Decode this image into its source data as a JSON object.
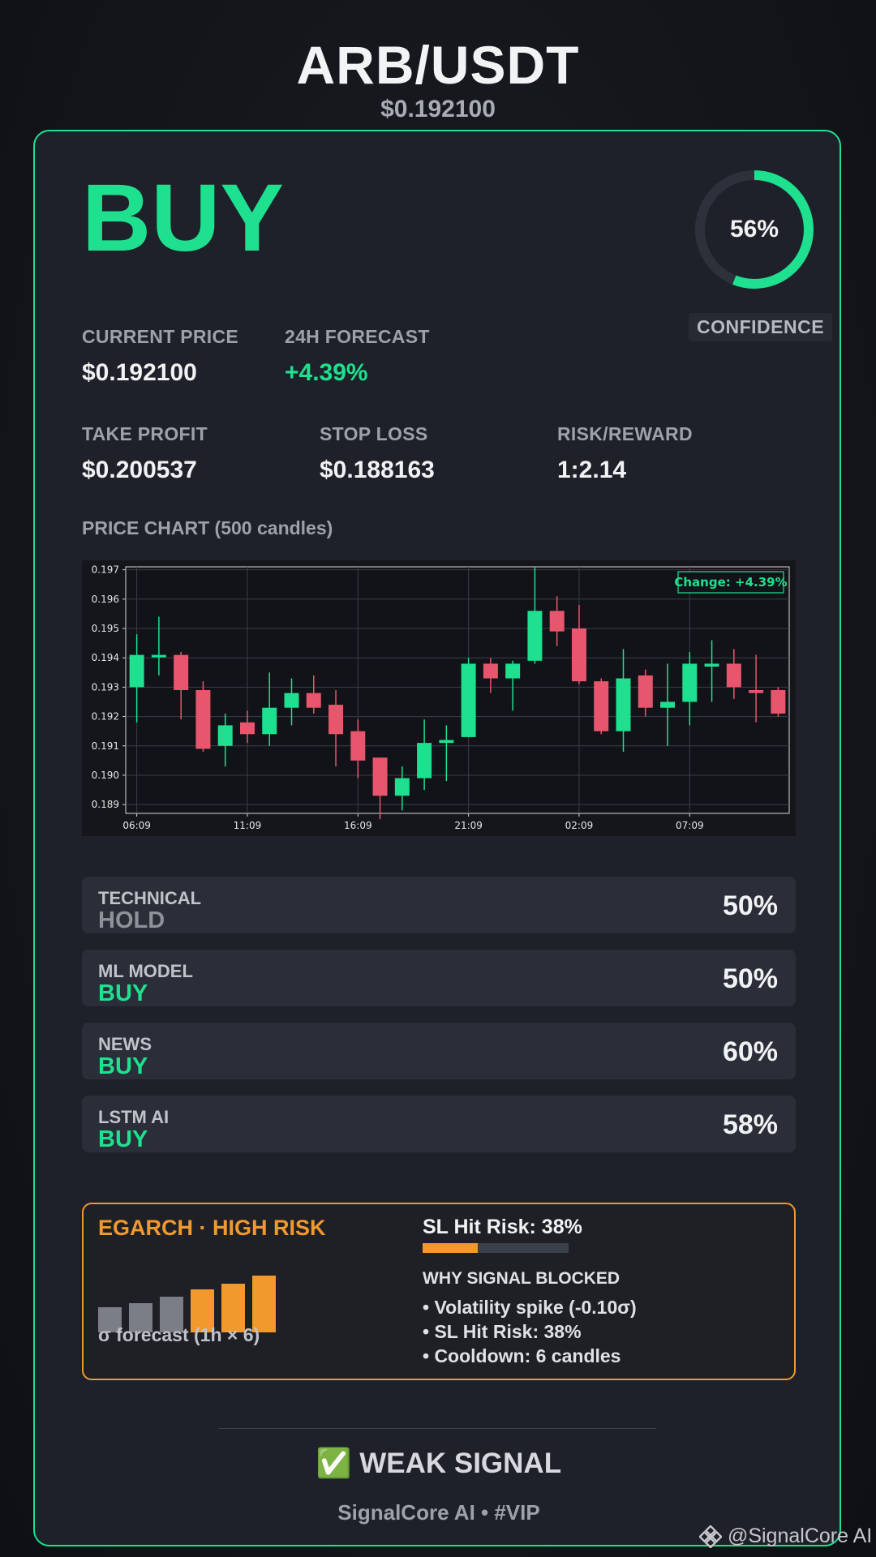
{
  "header": {
    "pair": "ARB/USDT",
    "price": "$0.192100"
  },
  "signal": {
    "label": "BUY",
    "color": "#1ee08f"
  },
  "confidence": {
    "value": 0.56,
    "text": "56%",
    "label": "CONFIDENCE"
  },
  "metrics": {
    "current_price": {
      "label": "CURRENT PRICE",
      "value": "$0.192100"
    },
    "forecast": {
      "label": "24H FORECAST",
      "value": "+4.39%"
    },
    "take_profit": {
      "label": "TAKE PROFIT",
      "value": "$0.200537"
    },
    "stop_loss": {
      "label": "STOP LOSS",
      "value": "$0.188163"
    },
    "risk_reward": {
      "label": "RISK/REWARD",
      "value": "1:2.14"
    }
  },
  "chart_title": "PRICE CHART (500 candles)",
  "chart_data": {
    "type": "candlestick",
    "title": "",
    "xlabel": "",
    "ylabel": "",
    "ylim": [
      0.1887,
      0.1971
    ],
    "yticks": [
      0.197,
      0.196,
      0.195,
      0.194,
      0.193,
      0.192,
      0.191,
      0.19,
      0.189
    ],
    "ytick_labels": [
      "0.197",
      "0.196",
      "0.195",
      "0.194",
      "0.193",
      "0.192",
      "0.191",
      "0.190",
      "0.189"
    ],
    "xtick_labels": [
      "06:09",
      "11:09",
      "16:09",
      "21:09",
      "02:09",
      "07:09"
    ],
    "xtick_candle_index": [
      0,
      5,
      10,
      15,
      20,
      25
    ],
    "annotation": "Change: +4.39%",
    "grid": true,
    "colors": {
      "up": "#1ee08f",
      "down": "#e8566e"
    },
    "candles": [
      {
        "o": 0.193,
        "h": 0.1948,
        "l": 0.1918,
        "c": 0.1941
      },
      {
        "o": 0.1941,
        "h": 0.1954,
        "l": 0.1934,
        "c": 0.1941
      },
      {
        "o": 0.1941,
        "h": 0.1942,
        "l": 0.1919,
        "c": 0.1929
      },
      {
        "o": 0.1929,
        "h": 0.1932,
        "l": 0.1908,
        "c": 0.1909
      },
      {
        "o": 0.191,
        "h": 0.1921,
        "l": 0.1903,
        "c": 0.1917
      },
      {
        "o": 0.1918,
        "h": 0.1922,
        "l": 0.1911,
        "c": 0.1914
      },
      {
        "o": 0.1914,
        "h": 0.1935,
        "l": 0.191,
        "c": 0.1923
      },
      {
        "o": 0.1923,
        "h": 0.1933,
        "l": 0.1917,
        "c": 0.1928
      },
      {
        "o": 0.1928,
        "h": 0.1934,
        "l": 0.1921,
        "c": 0.1923
      },
      {
        "o": 0.1924,
        "h": 0.1929,
        "l": 0.1903,
        "c": 0.1914
      },
      {
        "o": 0.1915,
        "h": 0.1919,
        "l": 0.1899,
        "c": 0.1905
      },
      {
        "o": 0.1906,
        "h": 0.1906,
        "l": 0.1885,
        "c": 0.1893
      },
      {
        "o": 0.1893,
        "h": 0.1903,
        "l": 0.1888,
        "c": 0.1899
      },
      {
        "o": 0.1899,
        "h": 0.1919,
        "l": 0.1895,
        "c": 0.1911
      },
      {
        "o": 0.1911,
        "h": 0.1917,
        "l": 0.1898,
        "c": 0.1912
      },
      {
        "o": 0.1913,
        "h": 0.194,
        "l": 0.1913,
        "c": 0.1938
      },
      {
        "o": 0.1938,
        "h": 0.194,
        "l": 0.1928,
        "c": 0.1933
      },
      {
        "o": 0.1933,
        "h": 0.1939,
        "l": 0.1922,
        "c": 0.1938
      },
      {
        "o": 0.1939,
        "h": 0.1971,
        "l": 0.1938,
        "c": 0.1956
      },
      {
        "o": 0.1956,
        "h": 0.1961,
        "l": 0.1944,
        "c": 0.1949
      },
      {
        "o": 0.195,
        "h": 0.1958,
        "l": 0.1931,
        "c": 0.1932
      },
      {
        "o": 0.1932,
        "h": 0.1933,
        "l": 0.1914,
        "c": 0.1915
      },
      {
        "o": 0.1915,
        "h": 0.1943,
        "l": 0.1908,
        "c": 0.1933
      },
      {
        "o": 0.1934,
        "h": 0.1936,
        "l": 0.192,
        "c": 0.1923
      },
      {
        "o": 0.1923,
        "h": 0.1938,
        "l": 0.191,
        "c": 0.1925
      },
      {
        "o": 0.1925,
        "h": 0.1942,
        "l": 0.1917,
        "c": 0.1938
      },
      {
        "o": 0.1937,
        "h": 0.1946,
        "l": 0.1925,
        "c": 0.1938
      },
      {
        "o": 0.1938,
        "h": 0.1943,
        "l": 0.1926,
        "c": 0.193
      },
      {
        "o": 0.1929,
        "h": 0.1941,
        "l": 0.1918,
        "c": 0.1928
      },
      {
        "o": 0.1929,
        "h": 0.193,
        "l": 0.192,
        "c": 0.1921
      }
    ]
  },
  "components": [
    {
      "label": "TECHNICAL",
      "signal": "HOLD",
      "tone": "grey",
      "percent": "50%"
    },
    {
      "label": "ML MODEL",
      "signal": "BUY",
      "tone": "green",
      "percent": "50%"
    },
    {
      "label": "NEWS",
      "signal": "BUY",
      "tone": "green",
      "percent": "60%"
    },
    {
      "label": "LSTM AI",
      "signal": "BUY",
      "tone": "green",
      "percent": "58%"
    }
  ],
  "risk": {
    "title": "EGARCH · HIGH RISK",
    "sigma_label": "σ forecast (1h × 6)",
    "sigma_forecast": [
      0.28,
      0.33,
      0.4,
      0.48,
      0.55,
      0.64
    ],
    "sigma_colors": [
      "#7b7e86",
      "#7b7e86",
      "#7b7e86",
      "#f2992e",
      "#f2992e",
      "#f2992e"
    ],
    "sl_hit_label": "SL Hit Risk: 38%",
    "sl_hit_value": 0.38,
    "why_title": "WHY SIGNAL BLOCKED",
    "reasons": [
      "• Volatility spike (-0.10σ)",
      "• SL Hit Risk: 38%",
      "• Cooldown: 6 candles"
    ]
  },
  "strength": "✅ WEAK SIGNAL",
  "footer": "SignalCore AI • #VIP",
  "watermark": "@SignalCore AI",
  "colors": {
    "accent": "#1ee08f",
    "down": "#e8566e",
    "risk": "#f2992e"
  }
}
